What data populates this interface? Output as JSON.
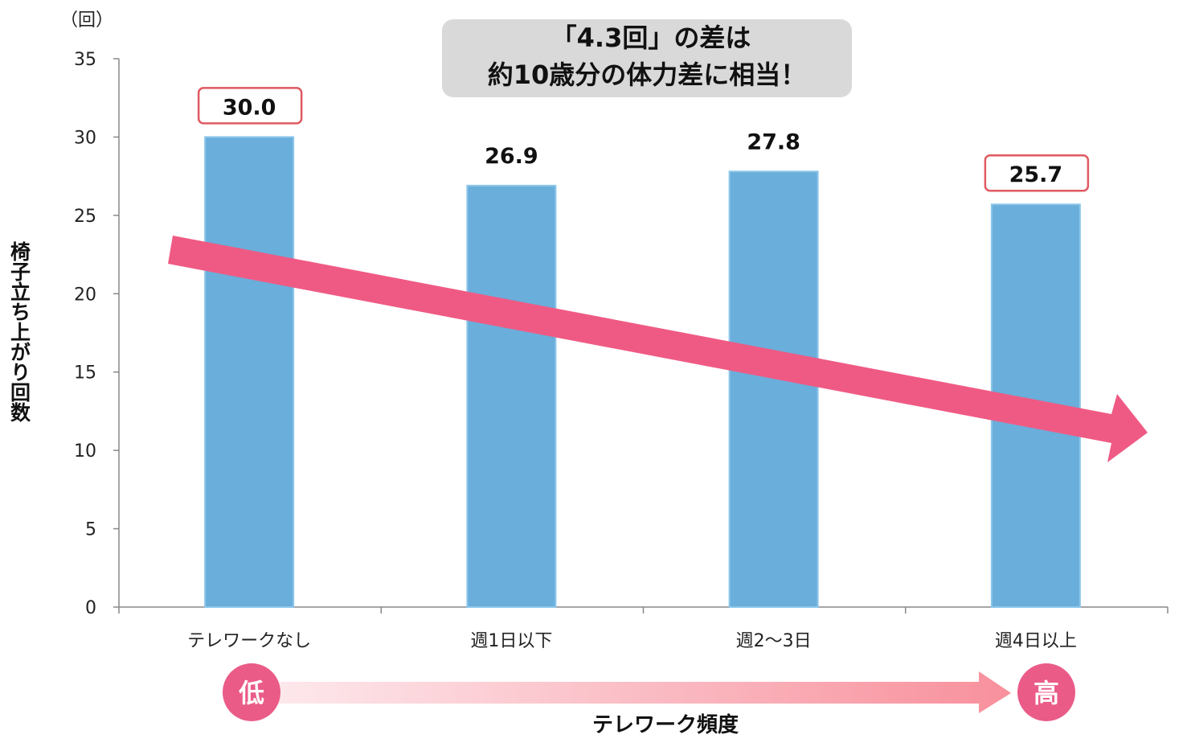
{
  "chart_data": {
    "type": "bar",
    "categories": [
      "テレワークなし",
      "週1日以下",
      "週2～3日",
      "週4日以上"
    ],
    "values": [
      30.0,
      26.9,
      27.8,
      25.7
    ],
    "value_labels": [
      "30.0",
      "26.9",
      "27.8",
      "25.7"
    ],
    "highlighted": [
      true,
      false,
      false,
      true
    ],
    "ylabel": "椅子立ち上がり回数",
    "yunit": "（回）",
    "xlabel": "テレワーク頻度",
    "ylim": [
      0,
      35
    ],
    "yticks": [
      0,
      5,
      10,
      15,
      20,
      25,
      30,
      35
    ],
    "grid": false,
    "annotation": [
      "「4.3回」の差は",
      "約10歳分の体力差に相当！"
    ],
    "trend_arrow": "downward",
    "scale_low": "低",
    "scale_high": "高",
    "colors": {
      "bar": "#6aaedb",
      "bar_edge": "#8cc6ea",
      "trend": "#ef5a84",
      "highlight_box": "#e05a62",
      "annotation_bg": "#d9d9d9",
      "circle": "#ea5b88"
    }
  }
}
